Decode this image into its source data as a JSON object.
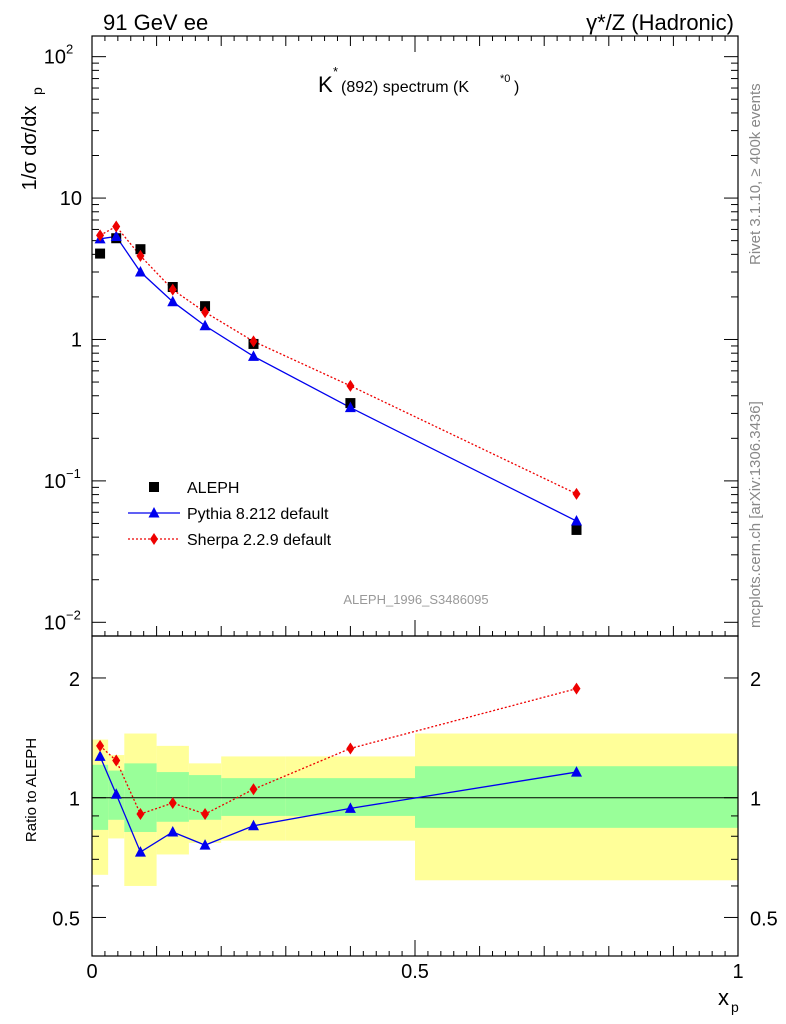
{
  "header": {
    "left": "91 GeV ee",
    "right": "γ*/Z (Hadronic)"
  },
  "side": {
    "rivet": "Rivet 3.1.10, ≥ 400k events",
    "mcplots": "mcplots.cern.ch [arXiv:1306.3436]"
  },
  "colors": {
    "data": "#000000",
    "pythia": "#0000ee",
    "sherpa": "#ee0000",
    "band_inner": "#99ff99",
    "band_outer": "#ffff99"
  },
  "chart_data": [
    {
      "type": "scatter",
      "scale": "log",
      "title_main": "K",
      "title_sup": "*",
      "title_rest": "(892) spectrum (K",
      "title_rest_sup": "*0",
      "title_close": ")",
      "ylabel": "1/σ dσ/dx",
      "ylabel_sub": "p",
      "ylim": [
        0.008,
        140
      ],
      "xlim": [
        0,
        1
      ],
      "y_ticks": [
        {
          "value": 0.01,
          "base": "10",
          "exp": "−2"
        },
        {
          "value": 0.1,
          "base": "10",
          "exp": "−1"
        },
        {
          "value": 1,
          "label": "1"
        },
        {
          "value": 10,
          "label": "10"
        },
        {
          "value": 100,
          "base": "10",
          "exp": "2"
        }
      ],
      "watermark": "ALEPH_1996_S3486095",
      "legend": {
        "position": "bottom-left",
        "entries": [
          "ALEPH",
          "Pythia 8.212 default",
          "Sherpa 2.2.9 default"
        ]
      },
      "series": [
        {
          "name": "ALEPH",
          "x": [
            0.0125,
            0.0375,
            0.075,
            0.125,
            0.175,
            0.25,
            0.4,
            0.75
          ],
          "y": [
            4.05,
            5.2,
            4.35,
            2.35,
            1.72,
            0.93,
            0.355,
            0.045
          ],
          "xerr": [
            0.0125,
            0.0125,
            0.025,
            0.025,
            0.025,
            0.05,
            0.1,
            0.25
          ]
        },
        {
          "name": "Pythia 8.212 default",
          "x": [
            0.0125,
            0.0375,
            0.075,
            0.125,
            0.175,
            0.25,
            0.4,
            0.75
          ],
          "y": [
            5.15,
            5.35,
            3.0,
            1.85,
            1.25,
            0.76,
            0.33,
            0.052
          ]
        },
        {
          "name": "Sherpa 2.2.9 default",
          "x": [
            0.0125,
            0.0375,
            0.075,
            0.125,
            0.175,
            0.25,
            0.4,
            0.75
          ],
          "y": [
            5.45,
            6.3,
            3.9,
            2.25,
            1.56,
            0.97,
            0.47,
            0.081
          ]
        }
      ]
    },
    {
      "type": "scatter",
      "scale": "log",
      "ylabel": "Ratio to ALEPH",
      "xlabel": "x",
      "xlabel_sub": "p",
      "ylim": [
        0.4,
        2.55
      ],
      "xlim": [
        0,
        1
      ],
      "y_ticks": [
        {
          "value": 0.5,
          "label": "0.5"
        },
        {
          "value": 1,
          "label": "1"
        },
        {
          "value": 2,
          "label": "2"
        }
      ],
      "x_ticks": [
        {
          "value": 0,
          "label": "0"
        },
        {
          "value": 0.5,
          "label": "0.5"
        },
        {
          "value": 1,
          "label": "1"
        }
      ],
      "bands": [
        {
          "x0": 0.0,
          "x1": 0.025,
          "inner": [
            0.83,
            1.21
          ],
          "outer": [
            0.64,
            1.4
          ]
        },
        {
          "x0": 0.025,
          "x1": 0.05,
          "inner": [
            0.88,
            1.17
          ],
          "outer": [
            0.79,
            1.28
          ]
        },
        {
          "x0": 0.05,
          "x1": 0.1,
          "inner": [
            0.82,
            1.22
          ],
          "outer": [
            0.6,
            1.45
          ]
        },
        {
          "x0": 0.1,
          "x1": 0.15,
          "inner": [
            0.87,
            1.16
          ],
          "outer": [
            0.72,
            1.35
          ]
        },
        {
          "x0": 0.15,
          "x1": 0.2,
          "inner": [
            0.88,
            1.14
          ],
          "outer": [
            0.77,
            1.22
          ]
        },
        {
          "x0": 0.2,
          "x1": 0.3,
          "inner": [
            0.9,
            1.12
          ],
          "outer": [
            0.78,
            1.27
          ]
        },
        {
          "x0": 0.3,
          "x1": 0.5,
          "inner": [
            0.9,
            1.12
          ],
          "outer": [
            0.78,
            1.27
          ]
        },
        {
          "x0": 0.5,
          "x1": 1.0,
          "inner": [
            0.84,
            1.2
          ],
          "outer": [
            0.62,
            1.45
          ]
        }
      ],
      "series": [
        {
          "name": "Pythia 8.212 default",
          "x": [
            0.0125,
            0.0375,
            0.075,
            0.125,
            0.175,
            0.25,
            0.4,
            0.75
          ],
          "y": [
            1.27,
            1.02,
            0.73,
            0.82,
            0.76,
            0.85,
            0.94,
            1.16
          ]
        },
        {
          "name": "Sherpa 2.2.9 default",
          "x": [
            0.0125,
            0.0375,
            0.075,
            0.125,
            0.175,
            0.25,
            0.4,
            0.75
          ],
          "y": [
            1.35,
            1.24,
            0.91,
            0.97,
            0.91,
            1.05,
            1.33,
            1.88
          ]
        }
      ]
    }
  ]
}
